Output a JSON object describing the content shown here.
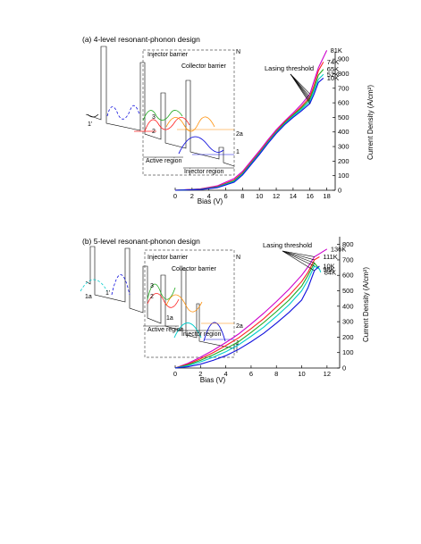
{
  "chart_data": [
    {
      "type": "line",
      "title": "(a) 4-level resonant-phonon design",
      "xlabel": "Bias (V)",
      "ylabel": "Current Density (A/cm²)",
      "xlim": [
        0,
        19
      ],
      "ylim": [
        0,
        950
      ],
      "xticks": [
        0,
        2,
        4,
        6,
        8,
        10,
        12,
        14,
        16,
        18
      ],
      "yticks": [
        0,
        100,
        200,
        300,
        400,
        500,
        600,
        700,
        800,
        900
      ],
      "annotation": "Lasing threshold",
      "inset_labels": [
        "N",
        "Injector barrier",
        "Collector barrier",
        "1'",
        "3",
        "2",
        "2a",
        "1",
        "Active region",
        "Injector region"
      ],
      "series": [
        {
          "name": "81K",
          "color": "#cc00cc",
          "x": [
            0,
            3,
            5,
            7,
            8,
            9,
            10,
            11,
            12,
            13,
            14,
            15,
            16,
            16.5,
            17,
            18
          ],
          "y": [
            0,
            10,
            30,
            80,
            130,
            200,
            270,
            345,
            415,
            475,
            530,
            590,
            660,
            750,
            840,
            960
          ]
        },
        {
          "name": "74K",
          "color": "#ff2222",
          "x": [
            0,
            3,
            5,
            7,
            8,
            9,
            10,
            11,
            12,
            13,
            14,
            15,
            16,
            16.5,
            17,
            17.6
          ],
          "y": [
            0,
            8,
            25,
            70,
            120,
            190,
            260,
            335,
            405,
            468,
            520,
            575,
            640,
            720,
            820,
            880
          ]
        },
        {
          "name": "65K",
          "color": "#22aa22",
          "x": [
            0,
            3,
            5,
            7,
            8,
            9,
            10,
            11,
            12,
            13,
            14,
            15,
            16,
            16.5,
            17,
            17.6
          ],
          "y": [
            0,
            7,
            22,
            65,
            115,
            185,
            255,
            330,
            400,
            462,
            515,
            565,
            625,
            700,
            790,
            830
          ]
        },
        {
          "name": "52K",
          "color": "#00cccc",
          "x": [
            0,
            3,
            5,
            7,
            8,
            9,
            10,
            11,
            12,
            13,
            14,
            15,
            16,
            16.5,
            17,
            17.6
          ],
          "y": [
            0,
            6,
            20,
            60,
            110,
            180,
            250,
            325,
            395,
            455,
            508,
            555,
            610,
            680,
            760,
            795
          ]
        },
        {
          "name": "10K",
          "color": "#1111dd",
          "x": [
            0,
            3,
            5,
            7,
            8,
            9,
            10,
            11,
            12,
            13,
            14,
            15,
            16,
            16.5,
            17,
            17.6
          ],
          "y": [
            0,
            5,
            18,
            55,
            105,
            175,
            245,
            320,
            390,
            450,
            500,
            545,
            595,
            660,
            740,
            770
          ]
        }
      ],
      "thresholds_x": [
        16,
        16,
        16,
        16,
        16
      ]
    },
    {
      "type": "line",
      "title": "(b) 5-level resonant-phonon design",
      "xlabel": "Bias (V)",
      "ylabel": "Current Density (A/cm²)",
      "xlim": [
        0,
        13
      ],
      "ylim": [
        0,
        850
      ],
      "xticks": [
        0,
        2,
        4,
        6,
        8,
        10,
        12
      ],
      "yticks": [
        0,
        100,
        200,
        300,
        400,
        500,
        600,
        700,
        800
      ],
      "annotation": "Lasing threshold",
      "inset_labels": [
        "N",
        "Injector barrier",
        "Collector barrier",
        "1a",
        "1'",
        "3",
        "2",
        "1a",
        "2a",
        "1",
        "Active region",
        "Injector region"
      ],
      "series": [
        {
          "name": "136K",
          "color": "#cc00cc",
          "x": [
            0,
            1,
            2,
            3,
            4,
            5,
            6,
            7,
            8,
            9,
            10,
            10.5,
            11,
            11.5,
            12
          ],
          "y": [
            0,
            30,
            70,
            115,
            165,
            220,
            285,
            355,
            430,
            510,
            600,
            655,
            720,
            745,
            770
          ]
        },
        {
          "name": "111K",
          "color": "#ff2222",
          "x": [
            0,
            1,
            2,
            3,
            4,
            5,
            6,
            7,
            8,
            9,
            10,
            10.5,
            11,
            11.4
          ],
          "y": [
            0,
            25,
            60,
            100,
            145,
            195,
            255,
            320,
            395,
            470,
            560,
            620,
            700,
            720
          ]
        },
        {
          "name": "98K",
          "color": "#22aa22",
          "x": [
            0,
            1,
            2,
            3,
            4,
            5,
            6,
            7,
            8,
            9,
            10,
            10.5,
            11,
            11.4
          ],
          "y": [
            0,
            20,
            50,
            85,
            125,
            170,
            230,
            295,
            365,
            440,
            530,
            600,
            680,
            640
          ]
        },
        {
          "name": "84K",
          "color": "#00cccc",
          "x": [
            0,
            1,
            2,
            3,
            4,
            5,
            6,
            7,
            8,
            9,
            10,
            10.5,
            11,
            11.4,
            11.5
          ],
          "y": [
            0,
            15,
            40,
            70,
            105,
            150,
            205,
            265,
            335,
            410,
            500,
            570,
            660,
            640,
            620
          ]
        },
        {
          "name": "10K",
          "color": "#1111dd",
          "x": [
            0,
            1,
            2,
            3,
            4,
            5,
            6,
            7,
            8,
            9,
            10,
            10.5,
            11,
            11.4
          ],
          "y": [
            0,
            8,
            25,
            50,
            80,
            120,
            170,
            225,
            290,
            360,
            440,
            520,
            630,
            660
          ]
        }
      ],
      "thresholds_x": [
        11,
        11,
        11,
        11,
        11
      ]
    }
  ]
}
